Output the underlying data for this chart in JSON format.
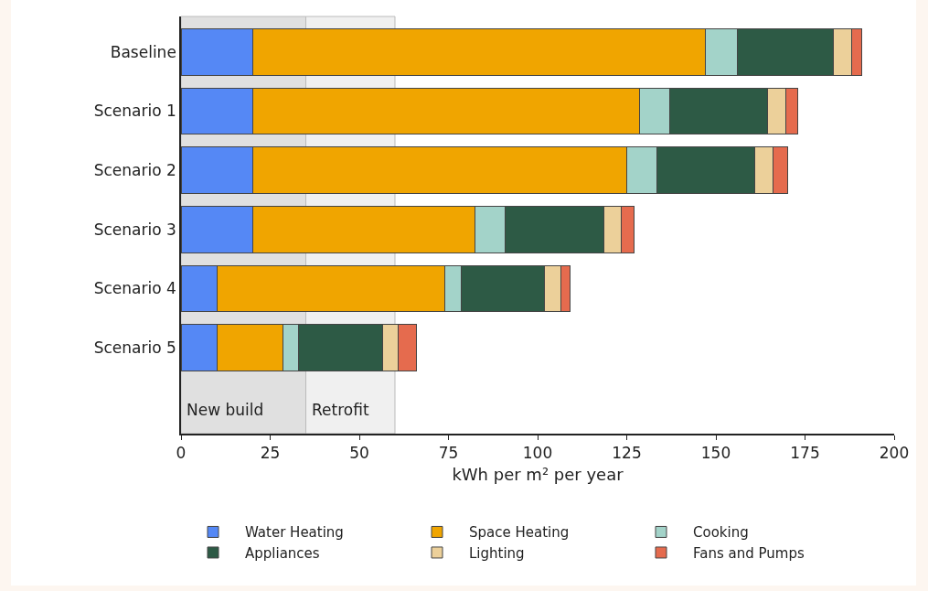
{
  "chart_data": {
    "type": "bar",
    "orientation": "horizontal",
    "stacked": true,
    "xlabel": "kWh per m² per year",
    "categories": [
      "Baseline",
      "Scenario 1",
      "Scenario 2",
      "Scenario 3",
      "Scenario 4",
      "Scenario 5"
    ],
    "series": [
      {
        "name": "Water Heating",
        "color": "#5588f5",
        "values": [
          20,
          20,
          20,
          20,
          10,
          10
        ]
      },
      {
        "name": "Space Heating",
        "color": "#f0a500",
        "values": [
          127,
          108.5,
          105,
          62.5,
          64,
          18.5
        ]
      },
      {
        "name": "Cooking",
        "color": "#a3d3c9",
        "values": [
          9,
          8.5,
          8.5,
          8.5,
          4.5,
          4.5
        ]
      },
      {
        "name": "Appliances",
        "color": "#2d5a45",
        "values": [
          27,
          27.5,
          27.5,
          27.5,
          23.5,
          23.5
        ]
      },
      {
        "name": "Lighting",
        "color": "#ecd09a",
        "values": [
          5,
          5,
          5,
          5,
          4.5,
          4.5
        ]
      },
      {
        "name": "Fans and Pumps",
        "color": "#e56b4e",
        "values": [
          3,
          3.5,
          4,
          3.5,
          2.5,
          5
        ]
      }
    ],
    "xlim": [
      0,
      200
    ],
    "xticks": [
      0,
      25,
      50,
      75,
      100,
      125,
      150,
      175,
      200
    ],
    "bands": [
      {
        "axis": "x",
        "from": 0,
        "to": 35,
        "label": "New build",
        "color": "#e0e0e0"
      },
      {
        "axis": "x",
        "from": 35,
        "to": 60,
        "label": "Retrofit",
        "color": "#f0f0f0"
      }
    ],
    "grid": false,
    "legend": "bottom"
  }
}
